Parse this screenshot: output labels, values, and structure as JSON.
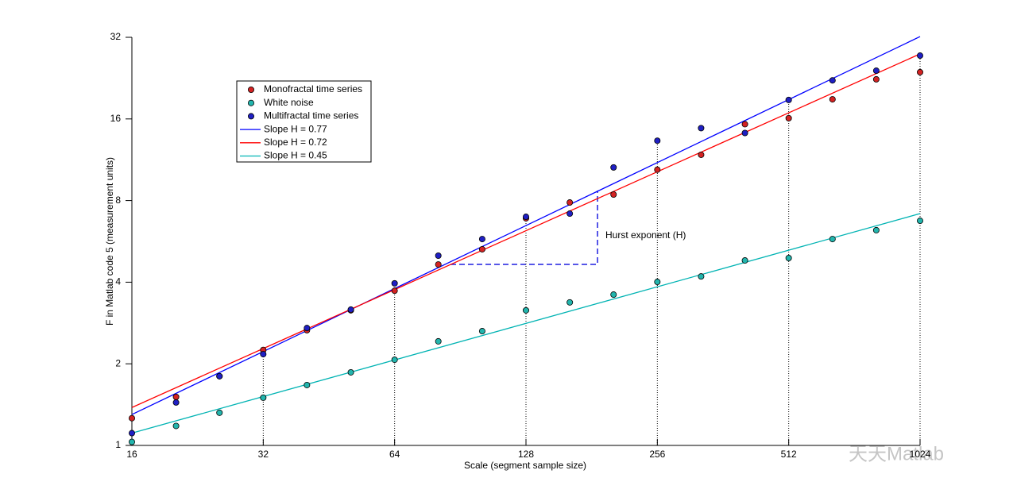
{
  "chart_data": {
    "type": "scatter",
    "xlabel": "Scale (segment sample size)",
    "ylabel": "F in Matlab code 5 (measurement units)",
    "log_scale": {
      "x": 2,
      "y": 2
    },
    "x": [
      16,
      20.2,
      25.4,
      32,
      40.3,
      50.8,
      64,
      80.6,
      101.6,
      128,
      161.3,
      203.2,
      256,
      322.5,
      406.4,
      512,
      645.1,
      812.7,
      1024
    ],
    "series": [
      {
        "name": "Monofractal time series",
        "color": "#d42222",
        "values": [
          1.26,
          1.51,
          1.8,
          2.25,
          2.66,
          3.15,
          3.72,
          4.65,
          5.29,
          6.88,
          7.87,
          8.42,
          10.4,
          11.8,
          15.3,
          16.1,
          18.9,
          22.4,
          23.8
        ]
      },
      {
        "name": "White noise",
        "color": "#22b5ad",
        "values": [
          1.03,
          1.18,
          1.32,
          1.5,
          1.67,
          1.86,
          2.07,
          2.42,
          2.64,
          3.15,
          3.37,
          3.6,
          4.01,
          4.2,
          4.81,
          4.91,
          5.77,
          6.22,
          6.74
        ]
      },
      {
        "name": "Multifractal time series",
        "color": "#1f1fc4",
        "values": [
          1.11,
          1.44,
          1.8,
          2.17,
          2.71,
          3.17,
          3.96,
          5.01,
          5.77,
          6.97,
          7.16,
          10.6,
          13.3,
          14.8,
          14.2,
          18.8,
          22.2,
          24.1,
          27.4
        ]
      }
    ],
    "fits": [
      {
        "name": "Slope H = 0.77",
        "color": "#0000ff",
        "x": [
          16,
          1024
        ],
        "values": [
          1.3,
          32.2
        ]
      },
      {
        "name": "Slope H = 0.72",
        "color": "#ff0000",
        "x": [
          16,
          1024
        ],
        "values": [
          1.38,
          27.8
        ]
      },
      {
        "name": "Slope H = 0.45",
        "color": "#00b3b3",
        "x": [
          16,
          1024
        ],
        "values": [
          1.11,
          7.16
        ]
      }
    ],
    "annotation": "Hurst exponent (H)",
    "watermark": "天天Matlab",
    "xlim": [
      16,
      1024
    ],
    "ylim": [
      1,
      32
    ],
    "xticks": [
      16,
      32,
      64,
      128,
      256,
      512,
      1024
    ],
    "yticks": [
      1,
      2,
      4,
      8,
      16,
      32
    ],
    "legend": "upper left",
    "grid": false
  }
}
